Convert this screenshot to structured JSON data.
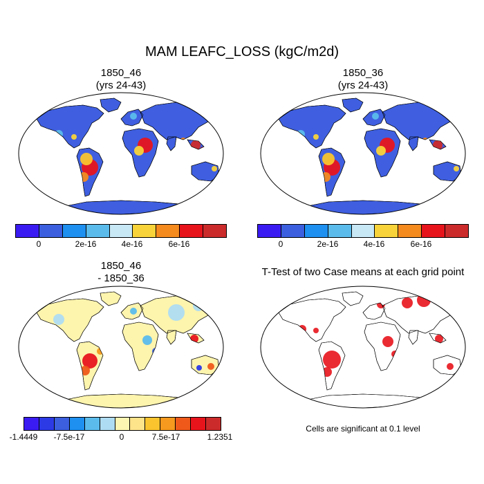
{
  "title": "MAM LEAFC_LOSS (kgC/m2d)",
  "panels": {
    "p1": {
      "line1": "1850_46",
      "line2": "(yrs 24-43)"
    },
    "p2": {
      "line1": "1850_36",
      "line2": "(yrs 24-43)"
    },
    "p3": {
      "line1": "1850_46",
      "line2": "- 1850_36"
    },
    "p4": {
      "line1": "T-Test of two Case means at each grid point"
    }
  },
  "colorbar_top": {
    "colors": [
      "#3a1cf2",
      "#3b5fde",
      "#1e90f0",
      "#5bbcec",
      "#c8e8f6",
      "#f9d33a",
      "#f58a1e",
      "#e8141c",
      "#cc2b2b"
    ],
    "ticks": [
      "0",
      "2e-16",
      "4e-16",
      "6e-16"
    ]
  },
  "colorbar_bottom": {
    "colors": [
      "#3a1cf2",
      "#2c3ae6",
      "#3b5fde",
      "#1e90f0",
      "#5bbcec",
      "#aedcf2",
      "#fdf6b2",
      "#fde38a",
      "#f9c42e",
      "#f59a1e",
      "#ef5a1a",
      "#e8141c",
      "#cc2b2b"
    ],
    "ticks": [
      "-1.4449",
      "-7.5e-17",
      "0",
      "7.5e-17",
      "1.2351"
    ]
  },
  "ttest_note": "Cells are significant at 0.1 level",
  "colors": {
    "ocean": "#ffffff",
    "land_base": "#3f5fe0",
    "diff_land": "#fdf4ad",
    "signif": "#e8141c"
  }
}
